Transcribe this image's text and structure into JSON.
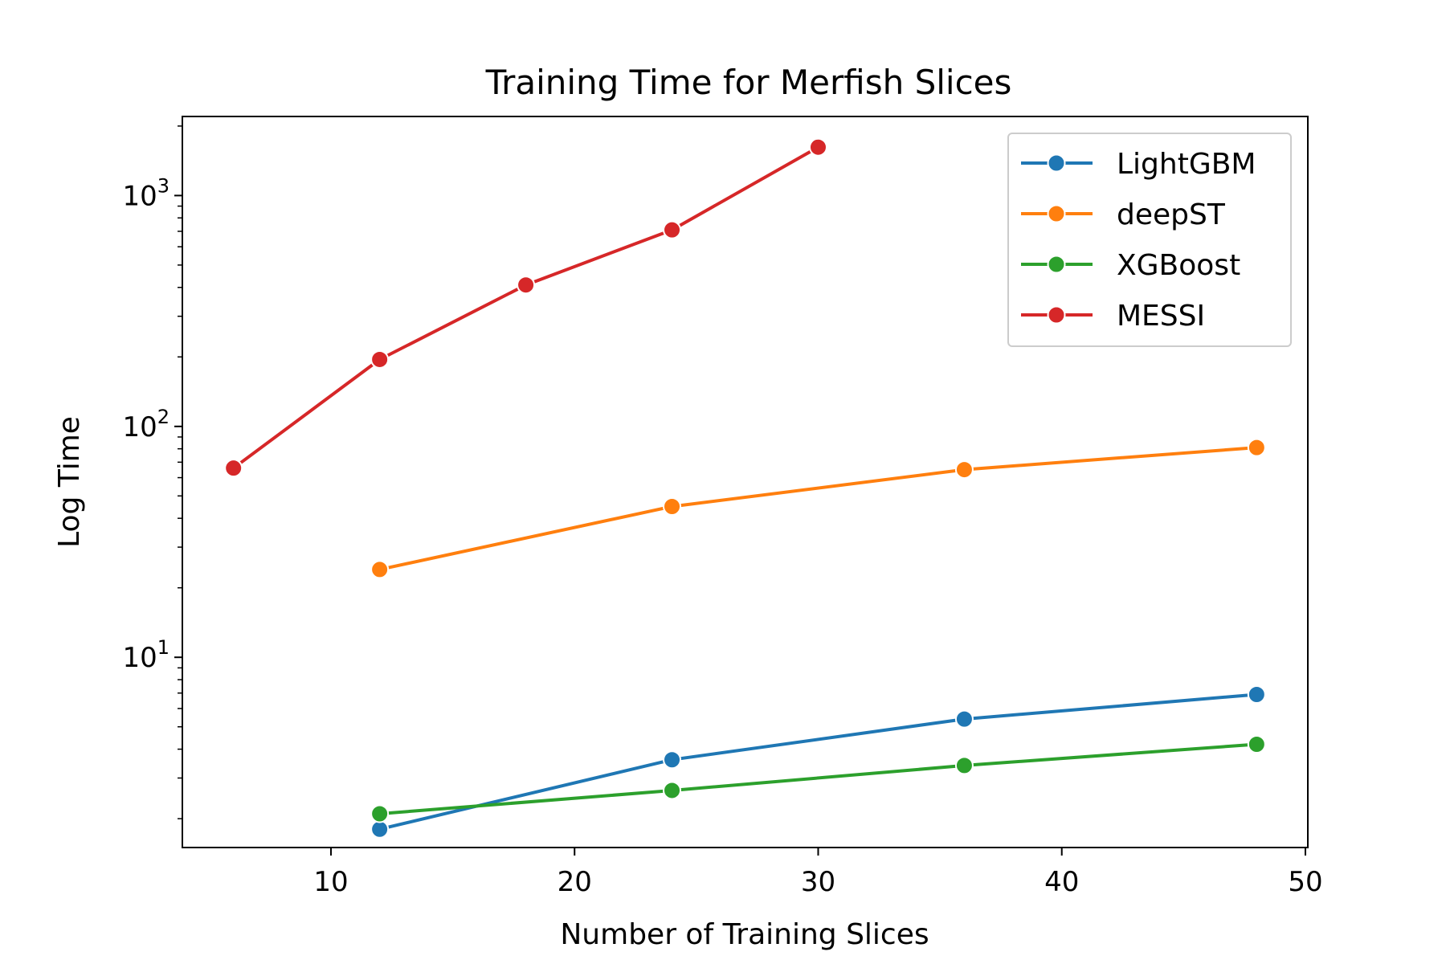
{
  "chart_data": {
    "type": "line",
    "title": "Training Time for Merfish Slices",
    "xlabel": "Number of Training Slices",
    "ylabel": "Log Time",
    "yscale": "log",
    "xlim": [
      3.9,
      50.1
    ],
    "ylim": [
      1.5,
      2200
    ],
    "xticks": [
      10,
      20,
      30,
      40,
      50
    ],
    "yticks": [
      {
        "value": 10,
        "base": "10",
        "exp": "1"
      },
      {
        "value": 100,
        "base": "10",
        "exp": "2"
      },
      {
        "value": 1000,
        "base": "10",
        "exp": "3"
      }
    ],
    "grid": false,
    "legend_position": "top-right",
    "series": [
      {
        "name": "LightGBM",
        "color": "#1f77b4",
        "x": [
          12,
          24,
          36,
          48
        ],
        "y": [
          1.8,
          3.6,
          5.4,
          6.9
        ]
      },
      {
        "name": "deepST",
        "color": "#ff7f0e",
        "x": [
          12,
          24,
          36,
          48
        ],
        "y": [
          24,
          45,
          65,
          81
        ]
      },
      {
        "name": "XGBoost",
        "color": "#2ca02c",
        "x": [
          12,
          24,
          36,
          48
        ],
        "y": [
          2.1,
          2.65,
          3.4,
          4.2
        ]
      },
      {
        "name": "MESSI",
        "color": "#d62728",
        "x": [
          6,
          12,
          18,
          24,
          30
        ],
        "y": [
          66,
          195,
          410,
          710,
          1620
        ]
      }
    ]
  }
}
